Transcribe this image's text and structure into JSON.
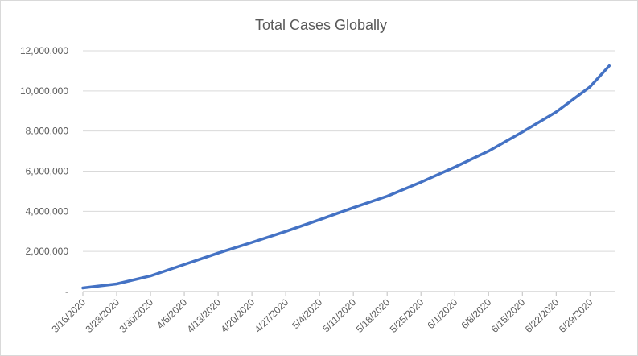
{
  "chart_data": {
    "type": "line",
    "title": "Total Cases Globally",
    "xlabel": "",
    "ylabel": "",
    "ylim": [
      0,
      12000000
    ],
    "yticks": [
      0,
      2000000,
      4000000,
      6000000,
      8000000,
      10000000,
      12000000
    ],
    "ytick_labels": [
      "-",
      "2,000,000",
      "4,000,000",
      "6,000,000",
      "8,000,000",
      "10,000,000",
      "12,000,000"
    ],
    "xtick_labels": [
      "3/16/2020",
      "3/23/2020",
      "3/30/2020",
      "4/6/2020",
      "4/13/2020",
      "4/20/2020",
      "4/27/2020",
      "5/4/2020",
      "5/11/2020",
      "5/18/2020",
      "5/25/2020",
      "6/1/2020",
      "6/8/2020",
      "6/15/2020",
      "6/22/2020",
      "6/29/2020"
    ],
    "grid": true,
    "legend": "none",
    "color": "#4472c4",
    "series": [
      {
        "x": [
          "3/16/2020",
          "3/23/2020",
          "3/30/2020",
          "4/6/2020",
          "4/13/2020",
          "4/20/2020",
          "4/27/2020",
          "5/4/2020",
          "5/11/2020",
          "5/18/2020",
          "5/25/2020",
          "6/1/2020",
          "6/8/2020",
          "6/15/2020",
          "6/22/2020",
          "6/29/2020",
          "7/3/2020"
        ],
        "values": [
          180000,
          380000,
          780000,
          1350000,
          1920000,
          2450000,
          3000000,
          3580000,
          4180000,
          4750000,
          5450000,
          6200000,
          7000000,
          7950000,
          8950000,
          10200000,
          11250000
        ]
      }
    ]
  }
}
